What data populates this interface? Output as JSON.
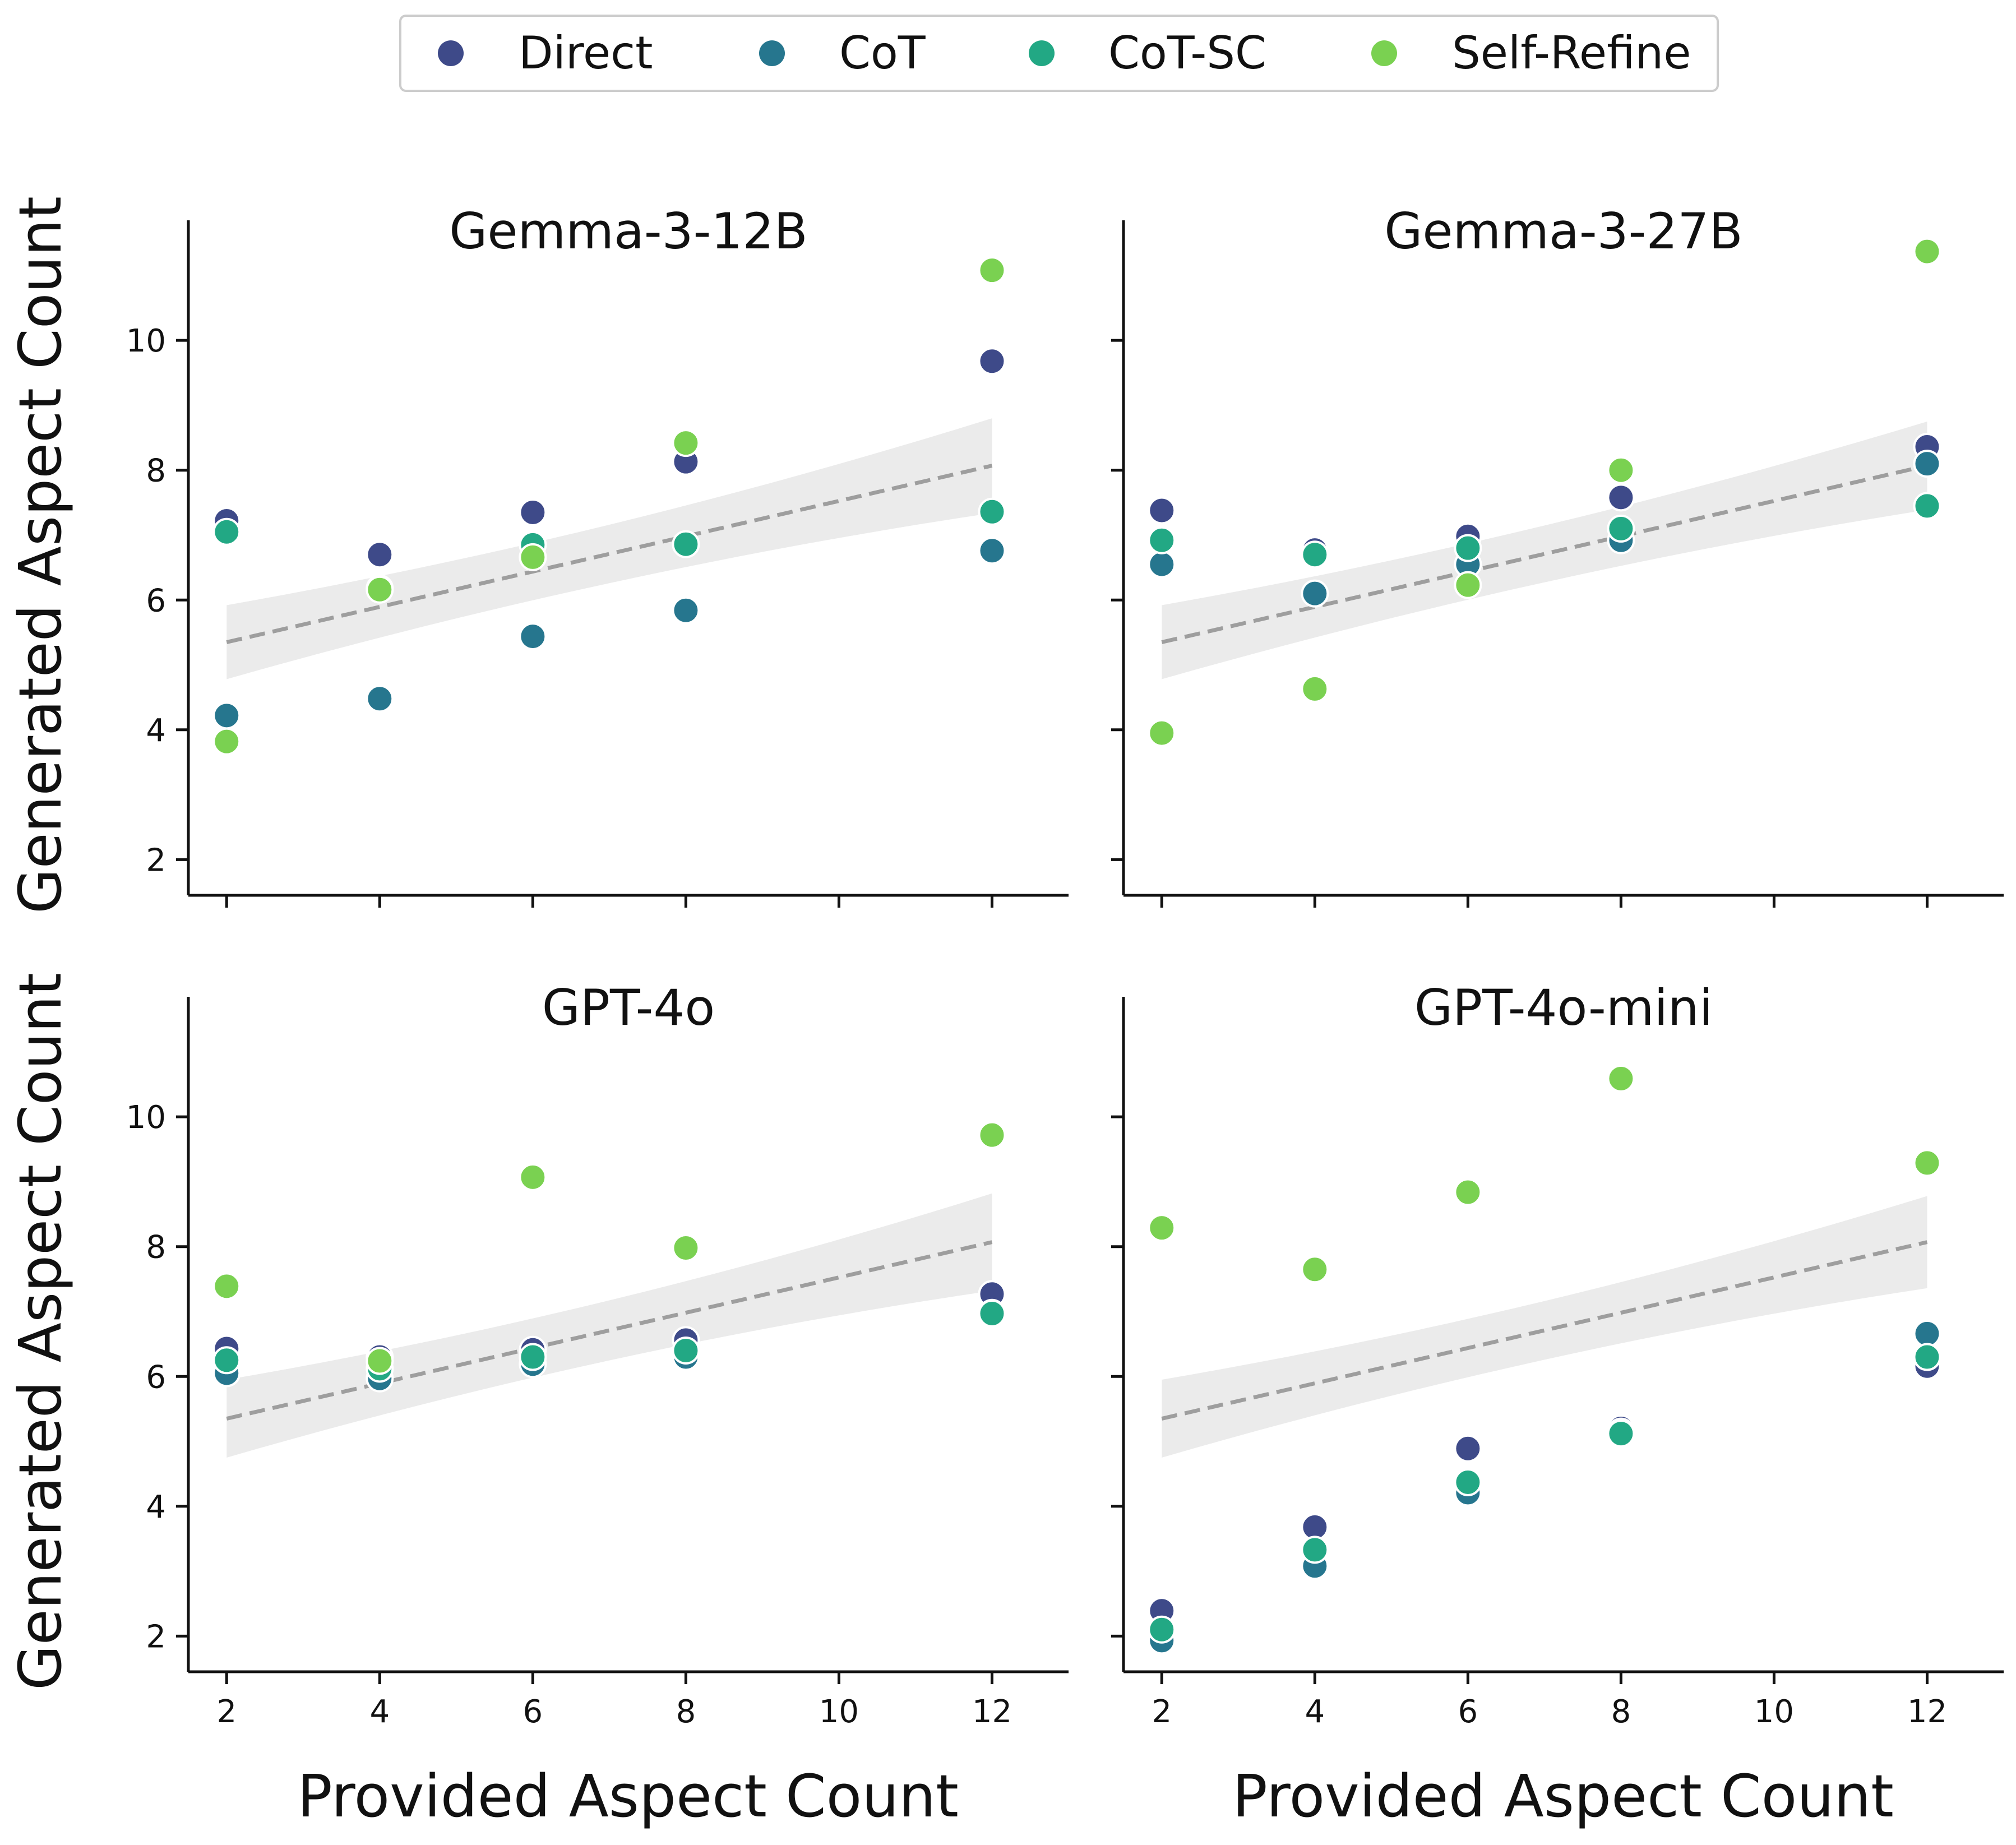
{
  "legend": {
    "items": [
      {
        "label": "Direct",
        "color": "#3e4a89"
      },
      {
        "label": "CoT",
        "color": "#26768e"
      },
      {
        "label": "CoT-SC",
        "color": "#22a884"
      },
      {
        "label": "Self-Refine",
        "color": "#7ad151"
      }
    ]
  },
  "axes": {
    "xlabel": "Provided Aspect Count",
    "ylabel": "Generated Aspect Count"
  },
  "colors": {
    "trend": "#9e9e9e",
    "band": "#ebebeb",
    "axis": "#111111",
    "marker_edge": "#ffffff"
  },
  "chart_data": [
    {
      "type": "scatter",
      "title": "Gemma-3-12B",
      "xlabel": "Provided Aspect Count",
      "ylabel": "Generated Aspect Count",
      "xlim": [
        1.5,
        13
      ],
      "ylim": [
        1.45,
        11.85
      ],
      "xticks": [
        2,
        4,
        6,
        8,
        10,
        12
      ],
      "yticks": [
        2,
        4,
        6,
        8,
        10
      ],
      "grid": false,
      "legend": "top-center",
      "x": [
        2,
        4,
        6,
        8,
        12
      ],
      "series": [
        {
          "name": "Direct",
          "values": [
            7.22,
            6.7,
            7.35,
            8.13,
            9.68
          ]
        },
        {
          "name": "CoT",
          "values": [
            4.22,
            4.48,
            5.44,
            5.84,
            6.76
          ]
        },
        {
          "name": "CoT-SC",
          "values": [
            7.05,
            6.18,
            6.85,
            6.86,
            7.36
          ]
        },
        {
          "name": "Self-Refine",
          "values": [
            3.82,
            6.16,
            6.66,
            8.42,
            11.08
          ]
        }
      ],
      "trend": {
        "x": [
          2,
          12
        ],
        "y": [
          5.35,
          8.07
        ],
        "ci_low": [
          4.78,
          7.42
        ],
        "ci_high": [
          5.92,
          8.8
        ]
      }
    },
    {
      "type": "scatter",
      "title": "Gemma-3-27B",
      "xlabel": "Provided Aspect Count",
      "ylabel": "Generated Aspect Count",
      "xlim": [
        1.5,
        13
      ],
      "ylim": [
        1.45,
        11.85
      ],
      "xticks": [
        2,
        4,
        6,
        8,
        10,
        12
      ],
      "yticks": [
        2,
        4,
        6,
        8,
        10
      ],
      "grid": false,
      "legend": "top-center",
      "x": [
        2,
        4,
        6,
        8,
        12
      ],
      "series": [
        {
          "name": "Direct",
          "values": [
            7.38,
            6.77,
            6.98,
            7.58,
            8.36
          ]
        },
        {
          "name": "CoT",
          "values": [
            6.55,
            6.1,
            6.55,
            6.92,
            8.1
          ]
        },
        {
          "name": "CoT-SC",
          "values": [
            6.92,
            6.7,
            6.8,
            7.1,
            7.45
          ]
        },
        {
          "name": "Self-Refine",
          "values": [
            3.95,
            4.63,
            6.23,
            8.0,
            11.37
          ]
        }
      ],
      "trend": {
        "x": [
          2,
          12
        ],
        "y": [
          5.35,
          8.07
        ],
        "ci_low": [
          4.78,
          7.42
        ],
        "ci_high": [
          5.92,
          8.75
        ]
      }
    },
    {
      "type": "scatter",
      "title": "GPT-4o",
      "xlabel": "Provided Aspect Count",
      "ylabel": "Generated Aspect Count",
      "xlim": [
        1.5,
        13
      ],
      "ylim": [
        1.45,
        11.85
      ],
      "xticks": [
        2,
        4,
        6,
        8,
        10,
        12
      ],
      "yticks": [
        2,
        4,
        6,
        8,
        10
      ],
      "grid": false,
      "legend": "top-center",
      "x": [
        2,
        4,
        6,
        8,
        12
      ],
      "series": [
        {
          "name": "Direct",
          "values": [
            6.43,
            6.3,
            6.41,
            6.56,
            7.27
          ]
        },
        {
          "name": "CoT",
          "values": [
            6.05,
            5.97,
            6.19,
            6.3,
            6.98
          ]
        },
        {
          "name": "CoT-SC",
          "values": [
            6.25,
            6.12,
            6.3,
            6.4,
            6.97
          ]
        },
        {
          "name": "Self-Refine",
          "values": [
            7.39,
            6.24,
            9.07,
            7.98,
            9.72
          ]
        }
      ],
      "trend": {
        "x": [
          2,
          12
        ],
        "y": [
          5.35,
          8.07
        ],
        "ci_low": [
          4.72,
          7.4
        ],
        "ci_high": [
          5.95,
          8.82
        ]
      }
    },
    {
      "type": "scatter",
      "title": "GPT-4o-mini",
      "xlabel": "Provided Aspect Count",
      "ylabel": "Generated Aspect Count",
      "xlim": [
        1.5,
        13
      ],
      "ylim": [
        1.45,
        11.85
      ],
      "xticks": [
        2,
        4,
        6,
        8,
        10,
        12
      ],
      "yticks": [
        2,
        4,
        6,
        8,
        10
      ],
      "grid": false,
      "legend": "top-center",
      "x": [
        2,
        4,
        6,
        8,
        12
      ],
      "series": [
        {
          "name": "Direct",
          "values": [
            2.39,
            3.68,
            4.89,
            5.2,
            6.16
          ]
        },
        {
          "name": "CoT",
          "values": [
            1.93,
            3.08,
            4.21,
            5.15,
            6.66
          ]
        },
        {
          "name": "CoT-SC",
          "values": [
            2.1,
            3.33,
            4.37,
            5.12,
            6.3
          ]
        },
        {
          "name": "Self-Refine",
          "values": [
            8.29,
            7.65,
            8.84,
            10.59,
            9.29
          ]
        }
      ],
      "trend": {
        "x": [
          2,
          12
        ],
        "y": [
          5.35,
          8.07
        ],
        "ci_low": [
          4.72,
          7.45
        ],
        "ci_high": [
          5.95,
          8.78
        ]
      }
    }
  ]
}
